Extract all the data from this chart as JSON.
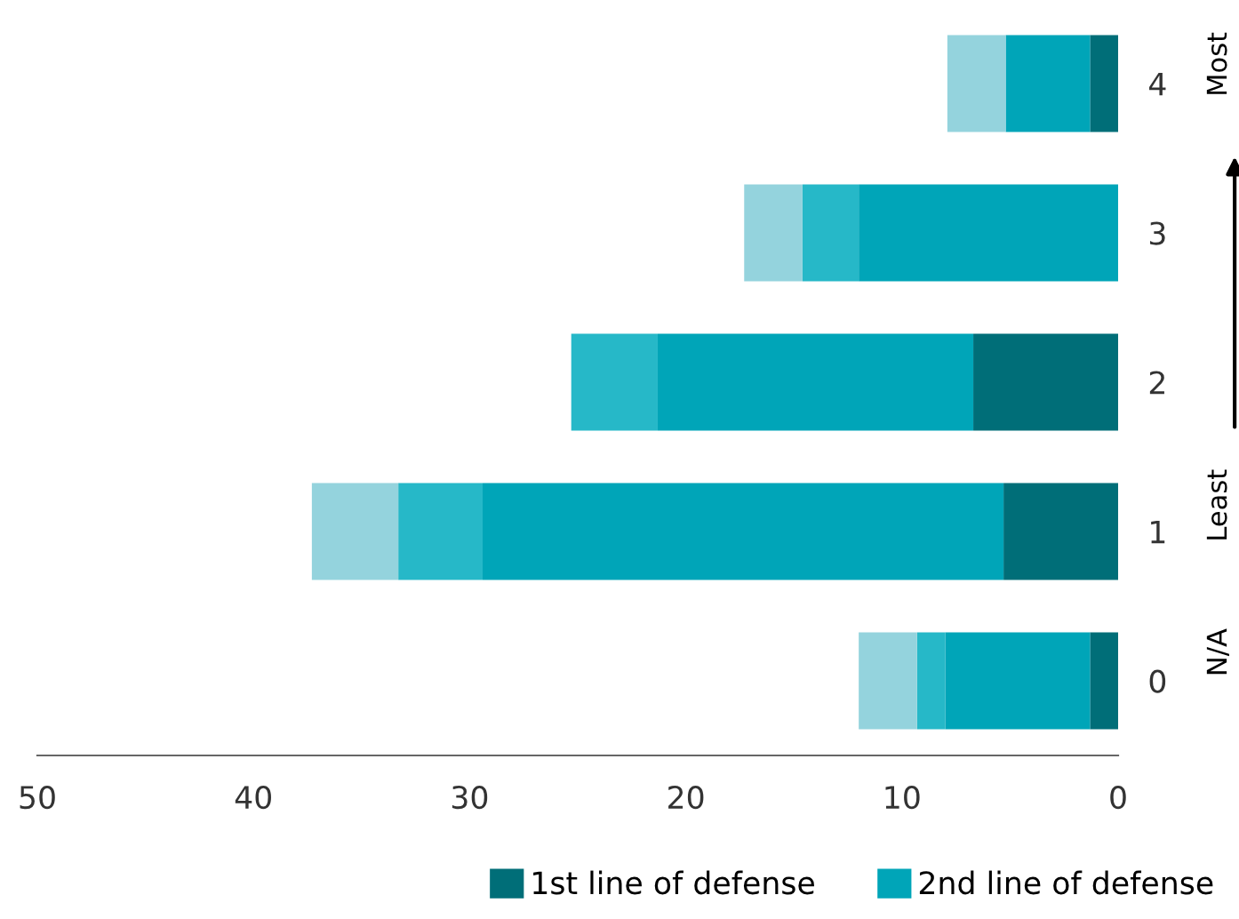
{
  "chart_data": {
    "type": "bar",
    "orientation": "horizontal",
    "stacked": true,
    "categories": [
      "4",
      "3",
      "2",
      "1",
      "0"
    ],
    "series": [
      {
        "name": "1st line of defense",
        "color": "#006e78",
        "values": [
          1.3,
          0,
          6.7,
          5.3,
          1.3
        ]
      },
      {
        "name": "2nd line of defense",
        "color": "#00a5b8",
        "values": [
          3.9,
          12.0,
          14.6,
          24.1,
          6.7
        ]
      },
      {
        "color": "#26b8c8",
        "values": [
          0,
          2.6,
          4.0,
          3.9,
          1.3
        ]
      },
      {
        "color": "#94d3dd",
        "values": [
          2.7,
          2.7,
          0,
          4.0,
          2.7
        ]
      }
    ],
    "xlim": [
      50,
      0
    ],
    "xticks": [
      50,
      40,
      30,
      20,
      10,
      0
    ],
    "annotations": [
      "Most",
      "Least",
      "N/A"
    ],
    "grid": false,
    "legend": "bottom right"
  }
}
